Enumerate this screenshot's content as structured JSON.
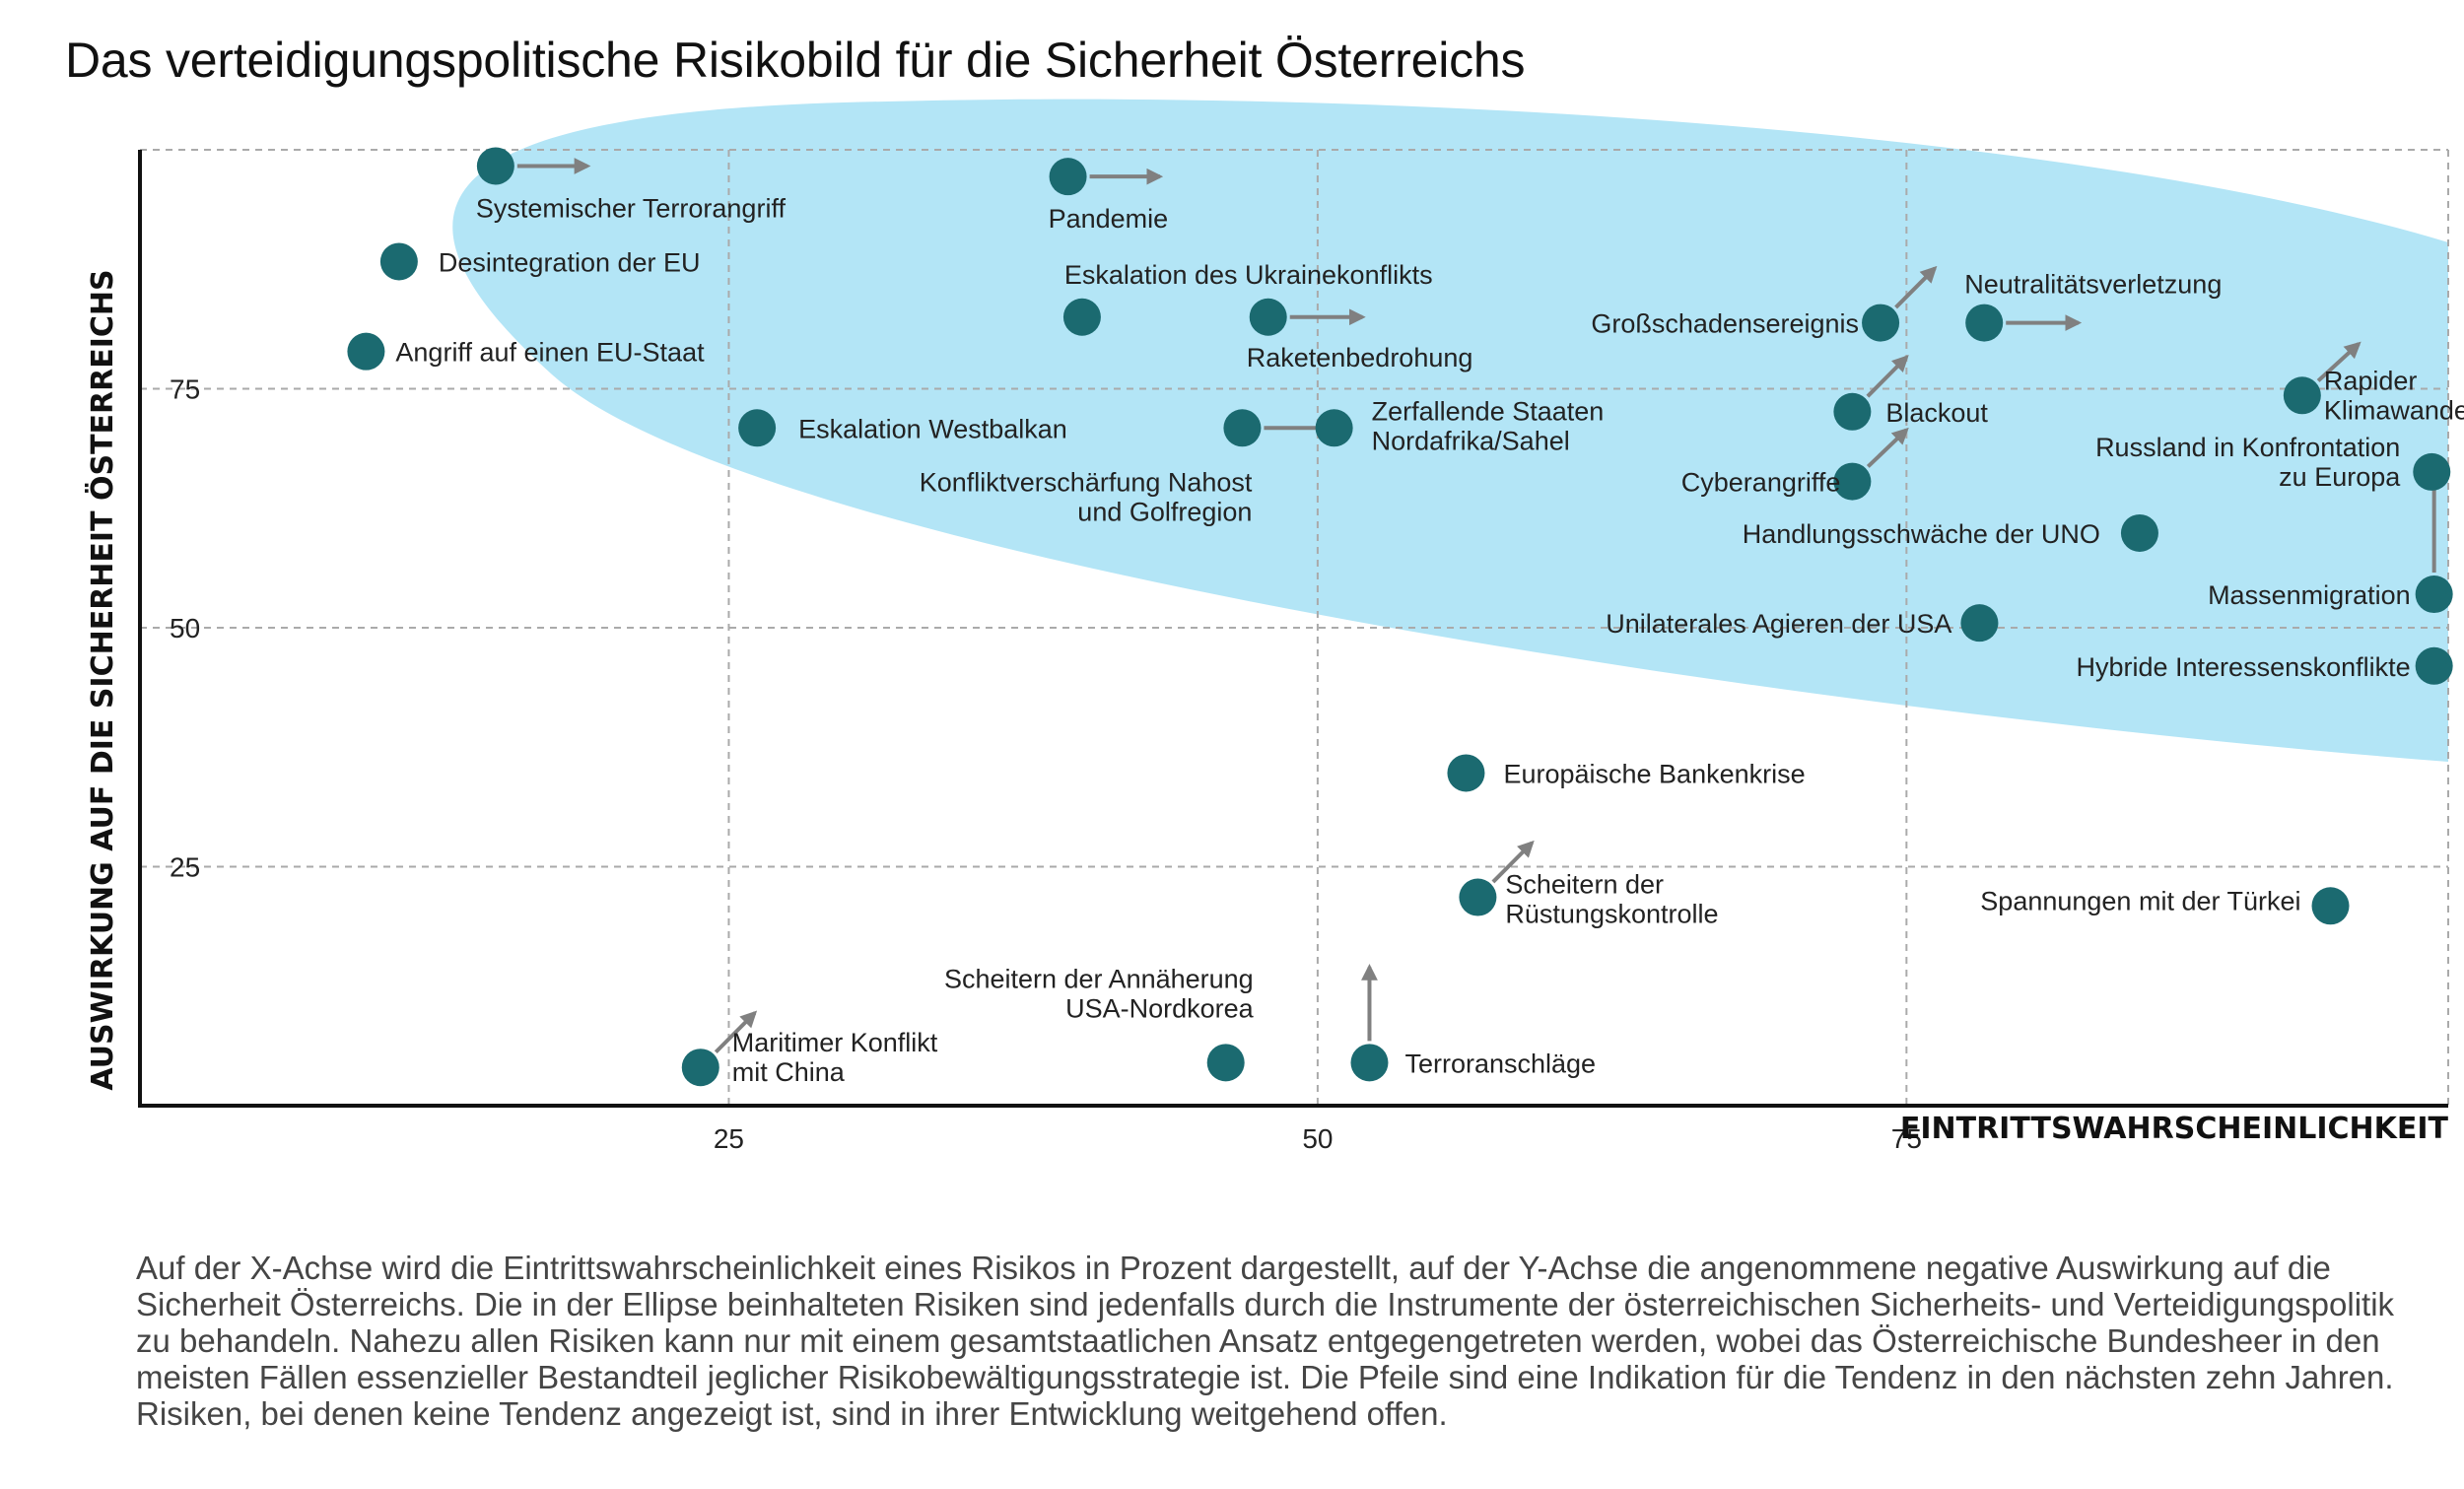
{
  "title": "Das verteidigungspolitische Risikobild für die Sicherheit Österreichs",
  "caption": "Auf der X-Achse wird die Eintrittswahrscheinlichkeit eines Risikos in Prozent dargestellt, auf der Y-Achse die angenommene negative Auswirkung auf die Sicherheit Österreichs. Die in der Ellipse beinhalteten Risiken sind jedenfalls durch die Instrumente der österreichischen Sicherheits- und Verteidigungspolitik zu behandeln. Nahezu allen Risiken kann nur mit einem gesamtstaatlichen Ansatz entgegengetreten werden, wobei das Österreichische Bundesheer in den meisten Fällen essenzieller Bestandteil jeglicher Risikobewältigungsstrategie ist. Die Pfeile sind eine Indikation für die Tendenz in den nächsten zehn Jahren. Risiken, bei denen keine Tendenz angezeigt ist, sind in ihrer Entwicklung weitgehend offen.",
  "colors": {
    "point": "#1b6a70",
    "arrow": "#808080",
    "ellipse": "#b3e5f6",
    "grid": "#aaaaaa",
    "axis": "#111111"
  },
  "chart_data": {
    "type": "scatter",
    "xlabel": "EINTRITTSWAHRSCHEINLICHKEIT",
    "ylabel": "AUSWIRKUNG AUF DIE SICHERHEIT ÖSTERREICHS",
    "xlim": [
      0,
      98
    ],
    "ylim": [
      0,
      100
    ],
    "xticks": [
      25,
      50,
      75
    ],
    "yticks": [
      25,
      50,
      75
    ],
    "grid": true,
    "points": [
      {
        "label": [
          "Systemischer Terrorangriff"
        ],
        "x": 15.1,
        "y": 98.3,
        "trend": [
          3.9,
          0
        ]
      },
      {
        "label": [
          "Pandemie"
        ],
        "x": 39.4,
        "y": 97.2,
        "trend": [
          3.9,
          0
        ]
      },
      {
        "label": [
          "Desintegration der EU"
        ],
        "x": 11.0,
        "y": 88.3,
        "trend": null
      },
      {
        "label": [
          "Eskalation des Ukrainekonflikts"
        ],
        "x": 40.0,
        "y": 82.5,
        "trend": null
      },
      {
        "label": [
          "Raketenbedrohung"
        ],
        "x": 47.9,
        "y": 82.5,
        "trend": [
          4.0,
          0
        ]
      },
      {
        "label": [
          "Großschadensereignis"
        ],
        "x": 73.9,
        "y": 81.9,
        "trend": [
          2.3,
          5.7
        ]
      },
      {
        "label": [
          "Neutralitätsverletzung"
        ],
        "x": 78.3,
        "y": 81.9,
        "trend": [
          4.0,
          0
        ]
      },
      {
        "label": [
          "Angriff auf einen EU-Staat"
        ],
        "x": 9.6,
        "y": 78.9,
        "trend": null
      },
      {
        "label": [
          "Rapider",
          "Klimawandel"
        ],
        "x": 91.8,
        "y": 74.3,
        "trend": [
          2.4,
          5.4
        ]
      },
      {
        "label": [
          "Blackout"
        ],
        "x": 72.7,
        "y": 72.6,
        "trend": [
          2.3,
          5.7
        ]
      },
      {
        "label": [
          "Eskalation Westbalkan"
        ],
        "x": 26.2,
        "y": 70.9,
        "trend": null
      },
      {
        "label": [
          "Konfliktverschärfung Nahost",
          "und Golfregion"
        ],
        "x": 46.8,
        "y": 70.9,
        "trend": [
          3.9,
          0
        ]
      },
      {
        "label": [
          "Zerfallende Staaten",
          "Nordafrika/Sahel"
        ],
        "x": 50.7,
        "y": 70.9,
        "trend": null
      },
      {
        "label": [
          "Cyberangriffe"
        ],
        "x": 72.7,
        "y": 65.3,
        "trend": [
          2.3,
          5.4
        ]
      },
      {
        "label": [
          "Russland in Konfrontation",
          "zu Europa"
        ],
        "x": 97.3,
        "y": 66.3,
        "trend": null
      },
      {
        "label": [
          "Handlungsschwäche der UNO"
        ],
        "x": 84.9,
        "y": 59.9,
        "trend": null
      },
      {
        "label": [
          "Massenmigration"
        ],
        "x": 97.4,
        "y": 53.5,
        "trend": [
          0,
          12.6
        ]
      },
      {
        "label": [
          "Unilaterales Agieren der USA"
        ],
        "x": 78.1,
        "y": 50.5,
        "trend": null
      },
      {
        "label": [
          "Hybride Interessenskonflikte"
        ],
        "x": 97.4,
        "y": 46.0,
        "trend": null
      },
      {
        "label": [
          "Europäische Bankenkrise"
        ],
        "x": 56.3,
        "y": 34.8,
        "trend": null
      },
      {
        "label": [
          "Scheitern der",
          "Rüstungskontrolle"
        ],
        "x": 56.8,
        "y": 21.8,
        "trend": [
          2.3,
          5.7
        ]
      },
      {
        "label": [
          "Spannungen mit der Türkei"
        ],
        "x": 93.0,
        "y": 20.9,
        "trend": null
      },
      {
        "label": [
          "Maritimer Konflikt",
          "mit China"
        ],
        "x": 23.8,
        "y": 4.0,
        "trend": [
          2.3,
          5.7
        ]
      },
      {
        "label": [
          "Scheitern der Annäherung",
          "USA-Nordkorea"
        ],
        "x": 46.1,
        "y": 4.5,
        "trend": null
      },
      {
        "label": [
          "Terroranschläge"
        ],
        "x": 52.2,
        "y": 4.5,
        "trend": [
          0,
          10.0
        ]
      }
    ]
  }
}
